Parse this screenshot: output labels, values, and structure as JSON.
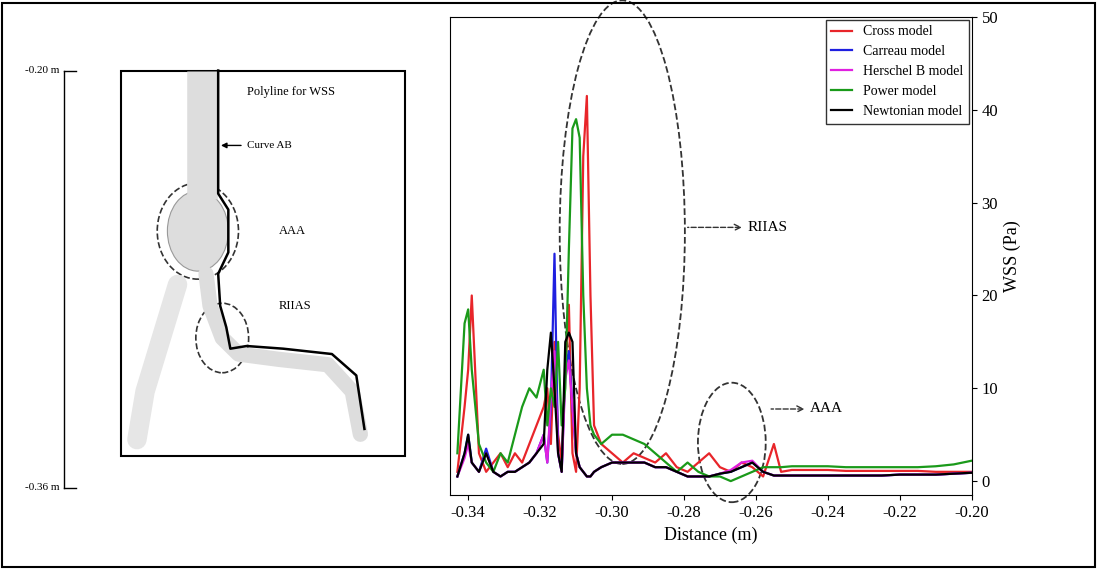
{
  "chart_data": {
    "type": "line",
    "x_label": "Distance (m)",
    "y_label": "WSS (Pa)",
    "xlim": [
      -0.345,
      -0.2
    ],
    "xticks": [
      -0.34,
      -0.32,
      {
        "value": -0.3,
        "label": "-0.30"
      },
      -0.28,
      -0.26,
      -0.24,
      -0.22,
      {
        "value": -0.2,
        "label": "-0.20"
      }
    ],
    "ylim": [
      -1.5,
      50
    ],
    "yticks": [
      0,
      10,
      20,
      30,
      40,
      50
    ],
    "legend": "upper right",
    "annotations": [
      "RIIAS",
      "AAA"
    ],
    "x": [
      -0.343,
      -0.341,
      -0.34,
      -0.339,
      -0.337,
      -0.335,
      -0.333,
      -0.331,
      -0.329,
      -0.327,
      -0.325,
      -0.323,
      -0.321,
      -0.319,
      -0.318,
      -0.317,
      -0.316,
      -0.315,
      -0.314,
      -0.313,
      -0.312,
      -0.311,
      -0.31,
      -0.309,
      -0.308,
      -0.307,
      -0.306,
      -0.305,
      -0.303,
      -0.3,
      -0.297,
      -0.294,
      -0.291,
      -0.288,
      -0.285,
      -0.282,
      -0.279,
      -0.276,
      -0.273,
      -0.27,
      -0.267,
      -0.264,
      -0.261,
      -0.258,
      -0.255,
      -0.253,
      -0.25,
      -0.245,
      -0.24,
      -0.235,
      -0.23,
      -0.225,
      -0.22,
      -0.215,
      -0.21,
      -0.205,
      -0.2
    ],
    "series": [
      {
        "name": "Cross model",
        "color": "#e8252a",
        "values": [
          1,
          8,
          12,
          20,
          3,
          1,
          2,
          3,
          1.5,
          3,
          2,
          4,
          6,
          8,
          10,
          4,
          15,
          5,
          2,
          12,
          19,
          3,
          1,
          10,
          35,
          41.5,
          20,
          6,
          4,
          3,
          2,
          3,
          2.5,
          2,
          3,
          1.5,
          1,
          2,
          3,
          1.5,
          1,
          2,
          1.5,
          0.5,
          4,
          1,
          1.2,
          1.2,
          1.2,
          1.1,
          1.1,
          1.1,
          1.1,
          1.1,
          1.0,
          1.0,
          1.0
        ]
      },
      {
        "name": "Carreau model",
        "color": "#1f1fe0",
        "values": [
          0.5,
          3,
          5,
          2,
          1,
          3.5,
          1,
          0.5,
          1,
          1,
          1.5,
          2,
          3,
          5,
          2,
          8,
          24.5,
          3,
          1,
          12,
          14,
          8,
          3,
          1.5,
          1,
          0.5,
          0.5,
          1,
          1.5,
          2,
          2,
          2,
          2,
          1.5,
          1.5,
          1,
          0.5,
          0.5,
          0.5,
          0.8,
          1,
          1.5,
          2,
          1,
          0.6,
          0.6,
          0.6,
          0.6,
          0.6,
          0.6,
          0.6,
          0.6,
          0.7,
          0.7,
          0.7,
          0.8,
          0.9
        ]
      },
      {
        "name": "Herschel B model",
        "color": "#e020e0",
        "values": [
          0.5,
          2.5,
          4,
          2,
          1,
          3,
          1,
          0.5,
          1,
          1,
          1.5,
          2,
          3,
          5,
          2,
          9,
          14,
          3,
          1,
          11,
          13,
          8,
          3,
          1.5,
          1,
          0.5,
          0.5,
          1,
          1.5,
          2,
          2,
          2,
          2,
          1.5,
          1.5,
          1,
          0.5,
          0.5,
          0.5,
          0.8,
          1.2,
          2,
          2.2,
          1,
          0.6,
          0.6,
          0.6,
          0.6,
          0.6,
          0.6,
          0.6,
          0.6,
          0.7,
          0.7,
          0.7,
          0.8,
          0.9
        ]
      },
      {
        "name": "Power model",
        "color": "#1a9a1a",
        "values": [
          3,
          17,
          18.5,
          12,
          4,
          2,
          1,
          3,
          2,
          5,
          8,
          10,
          9,
          12,
          6,
          10,
          8,
          15,
          6,
          10,
          25,
          38,
          39,
          37,
          20,
          10,
          6,
          5,
          4,
          5,
          5,
          4.5,
          4,
          3,
          2,
          1,
          2,
          1,
          0.5,
          0.5,
          0,
          0.5,
          1,
          1.5,
          1.5,
          1.5,
          1.6,
          1.6,
          1.6,
          1.5,
          1.5,
          1.5,
          1.5,
          1.5,
          1.6,
          1.8,
          2.2
        ]
      },
      {
        "name": "Newtonian model",
        "color": "#000000",
        "values": [
          0.5,
          3,
          5,
          2,
          1,
          3,
          1,
          0.5,
          1,
          1,
          1.5,
          2,
          3,
          4,
          12,
          16,
          10,
          3,
          1,
          15,
          16,
          15,
          3,
          1.5,
          1,
          0.5,
          0.5,
          1,
          1.5,
          2,
          2,
          2,
          2,
          1.5,
          1.5,
          1,
          0.5,
          0.5,
          0.5,
          0.8,
          1,
          1.5,
          2,
          1,
          0.6,
          0.6,
          0.6,
          0.6,
          0.6,
          0.6,
          0.6,
          0.6,
          0.7,
          0.7,
          0.7,
          0.8,
          0.9
        ]
      }
    ]
  },
  "diagram": {
    "scale_labels": [
      "-0.20 m",
      "-0.36 m"
    ],
    "labels": {
      "polyline": "Polyline for WSS",
      "curve": "Curve AB",
      "aneurysm": "AAA",
      "stenosis": "RIIAS"
    }
  }
}
